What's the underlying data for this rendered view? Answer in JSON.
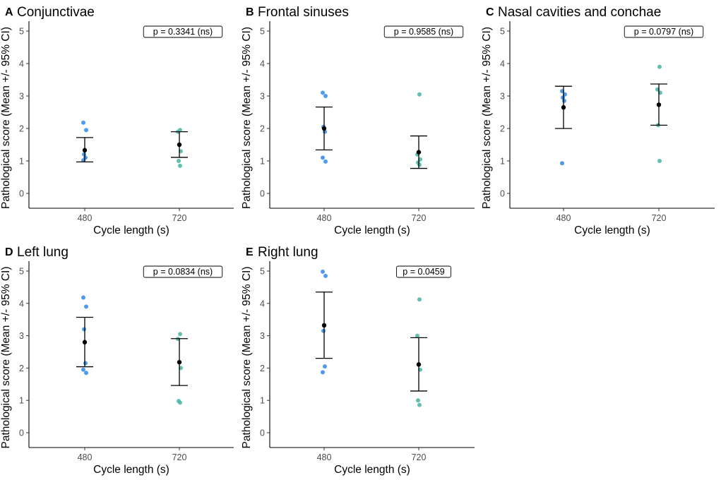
{
  "figure": {
    "colors": {
      "group_480": "#3d8fe8",
      "group_720": "#4fb8a8",
      "mean": "#000000",
      "axis": "#000000",
      "tick_text": "#4d4d4d"
    }
  },
  "chart_data": [
    {
      "type": "scatter",
      "panel_letter": "A",
      "title": "Conjunctivae",
      "xlabel": "Cycle length (s)",
      "ylabel": "Pathological score (Mean +/- 95% CI)",
      "ylim": [
        0,
        5
      ],
      "yticks": [
        "0",
        "1",
        "2",
        "3",
        "4",
        "5"
      ],
      "categories": [
        "480",
        "720"
      ],
      "p_value": "p = 0.3341 (ns)",
      "groups": [
        {
          "name": "480",
          "points": [
            2.18,
            1.95,
            1.2,
            1.1,
            1.02
          ],
          "mean": 1.33,
          "ci_low": 0.97,
          "ci_high": 1.72
        },
        {
          "name": "720",
          "points": [
            1.95,
            1.9,
            1.3,
            1.0,
            0.85
          ],
          "mean": 1.5,
          "ci_low": 1.11,
          "ci_high": 1.9
        }
      ]
    },
    {
      "type": "scatter",
      "panel_letter": "B",
      "title": "Frontal sinuses",
      "xlabel": "Cycle length (s)",
      "ylabel": "Pathological score (Mean +/- 95% CI)",
      "ylim": [
        0,
        5
      ],
      "yticks": [
        "0",
        "1",
        "2",
        "3",
        "4",
        "5"
      ],
      "categories": [
        "480",
        "720"
      ],
      "p_value": "p = 0.9585 (ns)",
      "groups": [
        {
          "name": "480",
          "points": [
            3.1,
            3.0,
            2.05,
            1.9,
            1.1,
            0.98
          ],
          "mean": 2.0,
          "ci_low": 1.34,
          "ci_high": 2.66
        },
        {
          "name": "720",
          "points": [
            3.05,
            1.2,
            1.05,
            0.95,
            0.88
          ],
          "mean": 1.27,
          "ci_low": 0.77,
          "ci_high": 1.77
        }
      ]
    },
    {
      "type": "scatter",
      "panel_letter": "C",
      "title": "Nasal cavities and conchae",
      "xlabel": "Cycle length (s)",
      "ylabel": "Pathological score (Mean +/- 95% CI)",
      "ylim": [
        0,
        5
      ],
      "yticks": [
        "0",
        "1",
        "2",
        "3",
        "4",
        "5"
      ],
      "categories": [
        "480",
        "720"
      ],
      "p_value": "p = 0.0797 (ns)",
      "groups": [
        {
          "name": "480",
          "points": [
            3.15,
            3.05,
            2.95,
            2.85,
            0.93
          ],
          "mean": 2.65,
          "ci_low": 2.0,
          "ci_high": 3.3
        },
        {
          "name": "720",
          "points": [
            3.9,
            3.2,
            3.1,
            2.1,
            1.0
          ],
          "mean": 2.73,
          "ci_low": 2.1,
          "ci_high": 3.37
        }
      ]
    },
    {
      "type": "scatter",
      "panel_letter": "D",
      "title": "Left lung",
      "xlabel": "Cycle length (s)",
      "ylabel": "Pathological score (Mean +/- 95% CI)",
      "ylim": [
        0,
        5
      ],
      "yticks": [
        "0",
        "1",
        "2",
        "3",
        "4",
        "5"
      ],
      "categories": [
        "480",
        "720"
      ],
      "p_value": "p = 0.0834 (ns)",
      "groups": [
        {
          "name": "480",
          "points": [
            4.18,
            3.9,
            3.2,
            2.15,
            1.95,
            1.85
          ],
          "mean": 2.8,
          "ci_low": 2.04,
          "ci_high": 3.57
        },
        {
          "name": "720",
          "points": [
            3.05,
            2.9,
            2.0,
            0.98,
            0.93
          ],
          "mean": 2.18,
          "ci_low": 1.46,
          "ci_high": 2.91
        }
      ]
    },
    {
      "type": "scatter",
      "panel_letter": "E",
      "title": "Right lung",
      "xlabel": "Cycle length (s)",
      "ylabel": "Pathological score (Mean +/- 95% CI)",
      "ylim": [
        0,
        5
      ],
      "yticks": [
        "0",
        "1",
        "2",
        "3",
        "4",
        "5"
      ],
      "categories": [
        "480",
        "720"
      ],
      "p_value": "p = 0.0459",
      "groups": [
        {
          "name": "480",
          "points": [
            4.98,
            4.85,
            3.15,
            2.05,
            1.87
          ],
          "mean": 3.32,
          "ci_low": 2.3,
          "ci_high": 4.35
        },
        {
          "name": "720",
          "points": [
            4.12,
            3.0,
            1.95,
            1.0,
            0.86
          ],
          "mean": 2.11,
          "ci_low": 1.29,
          "ci_high": 2.94
        }
      ]
    }
  ]
}
